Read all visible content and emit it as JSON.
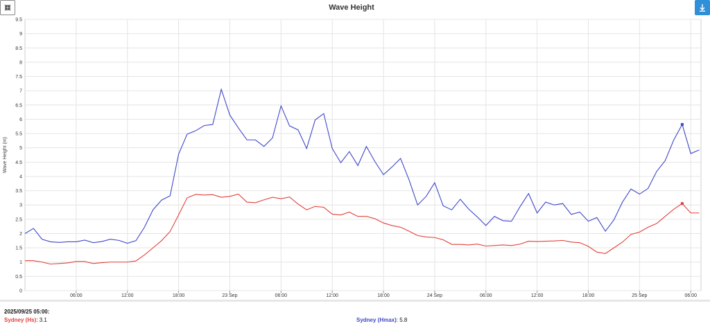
{
  "toolbar": {
    "collapse_icon": "collapse-arrows-icon",
    "download_icon": "download-arrow-icon",
    "download_color": "#2f8fd8"
  },
  "chart_data": {
    "type": "line",
    "title": "Wave Height",
    "ylabel": "Wave Height (m)",
    "xlabel": "",
    "ylim": [
      0,
      9.5
    ],
    "yticks": [
      "0",
      "0.5",
      "1",
      "1.5",
      "2",
      "2.5",
      "3",
      "3.5",
      "4",
      "4.5",
      "5",
      "5.5",
      "6",
      "6.5",
      "7",
      "7.5",
      "8",
      "8.5",
      "9",
      "9.5"
    ],
    "xticks": [
      {
        "h": 6,
        "label": "06:00"
      },
      {
        "h": 12,
        "label": "12:00"
      },
      {
        "h": 18,
        "label": "18:00"
      },
      {
        "h": 24,
        "label": "23 Sep"
      },
      {
        "h": 30,
        "label": "06:00"
      },
      {
        "h": 36,
        "label": "12:00"
      },
      {
        "h": 42,
        "label": "18:00"
      },
      {
        "h": 48,
        "label": "24 Sep"
      },
      {
        "h": 54,
        "label": "06:00"
      },
      {
        "h": 60,
        "label": "12:00"
      },
      {
        "h": 66,
        "label": "18:00"
      },
      {
        "h": 72,
        "label": "25 Sep"
      },
      {
        "h": 78,
        "label": "06:00"
      }
    ],
    "x_hours_from_22_Sep_00:00": [
      0,
      1,
      2,
      3,
      4,
      5,
      6,
      7,
      8,
      9,
      10,
      11,
      12,
      13,
      14,
      15,
      16,
      17,
      18,
      19,
      20,
      21,
      22,
      23,
      24,
      25,
      26,
      27,
      28,
      29,
      30,
      31,
      32,
      33,
      34,
      35,
      36,
      37,
      38,
      39,
      40,
      41,
      42,
      43,
      44,
      45,
      46,
      47,
      48,
      49,
      50,
      51,
      52,
      53,
      54,
      55,
      56,
      57,
      58,
      59,
      60,
      61,
      62,
      63,
      64,
      65,
      66,
      67,
      68,
      69,
      70,
      71,
      72,
      73,
      74,
      75,
      76,
      77,
      78,
      79
    ],
    "series": [
      {
        "name": "Sydney (Hs)",
        "color": "#e0403a",
        "values": [
          1.05,
          1.05,
          1.0,
          0.93,
          0.95,
          0.97,
          1.02,
          1.02,
          0.95,
          0.98,
          1.0,
          1.0,
          1.0,
          1.04,
          1.25,
          1.5,
          1.75,
          2.07,
          2.65,
          3.25,
          3.37,
          3.35,
          3.36,
          3.27,
          3.3,
          3.38,
          3.1,
          3.08,
          3.18,
          3.27,
          3.22,
          3.28,
          3.03,
          2.83,
          2.95,
          2.92,
          2.68,
          2.65,
          2.75,
          2.6,
          2.6,
          2.52,
          2.37,
          2.28,
          2.22,
          2.08,
          1.93,
          1.88,
          1.86,
          1.78,
          1.62,
          1.62,
          1.6,
          1.63,
          1.56,
          1.58,
          1.6,
          1.58,
          1.63,
          1.73,
          1.72,
          1.73,
          1.74,
          1.76,
          1.7,
          1.68,
          1.55,
          1.35,
          1.3,
          1.5,
          1.7,
          1.97,
          2.05,
          2.22,
          2.35,
          2.6,
          2.85,
          3.05,
          2.72,
          2.72
        ]
      },
      {
        "name": "Sydney (Hmax)",
        "color": "#3f47c8",
        "values": [
          2.0,
          2.18,
          1.8,
          1.71,
          1.69,
          1.71,
          1.71,
          1.77,
          1.68,
          1.72,
          1.8,
          1.76,
          1.66,
          1.75,
          2.22,
          2.83,
          3.17,
          3.32,
          4.78,
          5.48,
          5.6,
          5.78,
          5.82,
          7.05,
          6.15,
          5.7,
          5.28,
          5.28,
          5.05,
          5.35,
          6.47,
          5.77,
          5.63,
          4.98,
          5.98,
          6.2,
          4.98,
          4.48,
          4.87,
          4.38,
          5.05,
          4.52,
          4.06,
          4.33,
          4.63,
          3.88,
          3.0,
          3.3,
          3.78,
          2.97,
          2.83,
          3.2,
          2.85,
          2.58,
          2.28,
          2.6,
          2.45,
          2.43,
          2.94,
          3.4,
          2.72,
          3.1,
          3.0,
          3.05,
          2.67,
          2.75,
          2.43,
          2.56,
          2.08,
          2.48,
          3.1,
          3.56,
          3.38,
          3.58,
          4.17,
          4.55,
          5.27,
          5.82,
          4.8,
          4.93
        ]
      }
    ],
    "tooltip": {
      "timestamp": "2025/09/25 05:00:",
      "hs_label": "Sydney (Hs)",
      "hs_value": "3.1",
      "hmax_label": "Sydney (Hmax)",
      "hmax_value": "5.8"
    },
    "grid": true,
    "legend": "bottom"
  }
}
